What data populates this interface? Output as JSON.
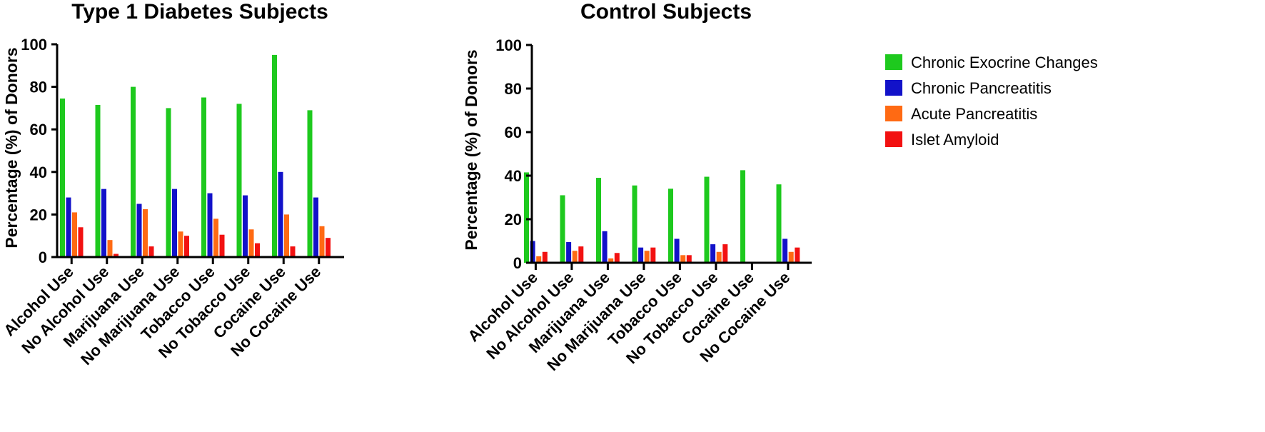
{
  "chart_data": [
    {
      "type": "bar",
      "title": "Type 1 Diabetes Subjects",
      "xlabel": "",
      "ylabel": "Percentage (%) of  Donors",
      "ylim": [
        0,
        100
      ],
      "yticks": [
        0,
        20,
        40,
        60,
        80,
        100
      ],
      "categories": [
        "Alcohol Use",
        "No Alcohol Use",
        "Marijuana Use",
        "No Marijuana Use",
        "Tobacco Use",
        "No Tobacco Use",
        "Cocaine Use",
        "No Cocaine Use"
      ],
      "series": [
        {
          "name": "Chronic Exocrine Changes",
          "values": [
            74.5,
            71.5,
            80,
            70,
            75,
            72,
            95,
            69
          ]
        },
        {
          "name": "Chronic Pancreatitis",
          "values": [
            28,
            32,
            25,
            32,
            30,
            29,
            40,
            28
          ]
        },
        {
          "name": "Acute Pancreatitis",
          "values": [
            21,
            8,
            22.5,
            12,
            18,
            13,
            20,
            14.5
          ]
        },
        {
          "name": "Islet Amyloid",
          "values": [
            14,
            1.5,
            5,
            10,
            10.5,
            6.5,
            5,
            9
          ]
        }
      ]
    },
    {
      "type": "bar",
      "title": "Control Subjects",
      "xlabel": "",
      "ylabel": "Percentage (%) of  Donors",
      "ylim": [
        0,
        100
      ],
      "yticks": [
        0,
        20,
        40,
        60,
        80,
        100
      ],
      "categories": [
        "Alcohol Use",
        "No Alcohol Use",
        "Marijuana Use",
        "No Marijuana Use",
        "Tobacco Use",
        "No Tobacco Use",
        "Cocaine Use",
        "No Cocaine Use"
      ],
      "series": [
        {
          "name": "Chronic Exocrine Changes",
          "values": [
            41.5,
            31,
            39,
            35.5,
            34,
            39.5,
            42.5,
            36
          ]
        },
        {
          "name": "Chronic Pancreatitis",
          "values": [
            10,
            9.5,
            14.5,
            7,
            11,
            8.5,
            0,
            11
          ]
        },
        {
          "name": "Acute Pancreatitis",
          "values": [
            3,
            5.5,
            2,
            5.5,
            3.5,
            5,
            0,
            5
          ]
        },
        {
          "name": "Islet Amyloid",
          "values": [
            5,
            7.5,
            4.5,
            7,
            3.5,
            8.5,
            0,
            7
          ]
        }
      ]
    }
  ],
  "legend": [
    {
      "label": "Chronic Exocrine Changes",
      "color": "#1ec91e"
    },
    {
      "label": "Chronic Pancreatitis",
      "color": "#1212c9"
    },
    {
      "label": "Acute Pancreatitis",
      "color": "#ff6a13"
    },
    {
      "label": "Islet Amyloid",
      "color": "#f21111"
    }
  ]
}
